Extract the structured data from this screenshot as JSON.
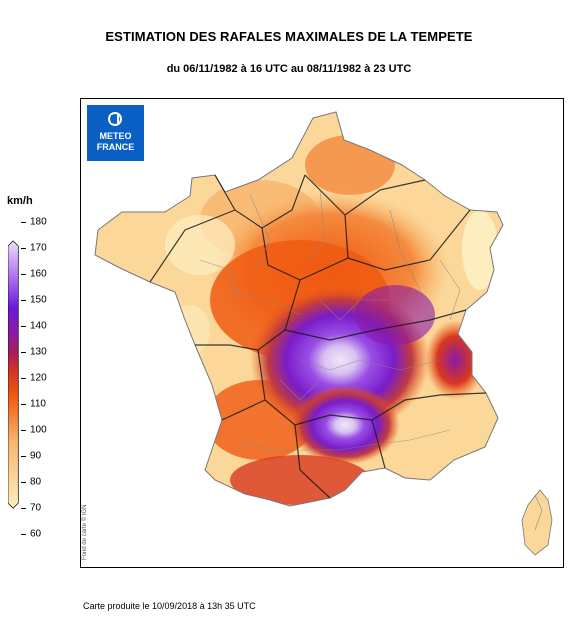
{
  "title": "ESTIMATION DES RAFALES MAXIMALES DE LA TEMPETE",
  "subtitle": "du 06/11/1982 à 16 UTC au 08/11/1982 à 23 UTC",
  "legend": {
    "unit": "km/h",
    "ticks": [
      "180",
      "170",
      "160",
      "150",
      "140",
      "130",
      "120",
      "110",
      "100",
      "90",
      "80",
      "70",
      "60"
    ],
    "colors": [
      "#fdeec0",
      "#fbd89a",
      "#f8b56d",
      "#f48a3e",
      "#f05a12",
      "#d8381e",
      "#a81f58",
      "#8a1aa6",
      "#6a1ad8",
      "#9b58ec",
      "#c79cf4",
      "#eee0fb"
    ]
  },
  "logo": {
    "line1": "METEO",
    "line2": "FRANCE",
    "color": "#0a5fc5"
  },
  "map_credit": "Fond de carte © IGN",
  "footer": "Carte produite le 10/09/2018 à 13h 35 UTC"
}
